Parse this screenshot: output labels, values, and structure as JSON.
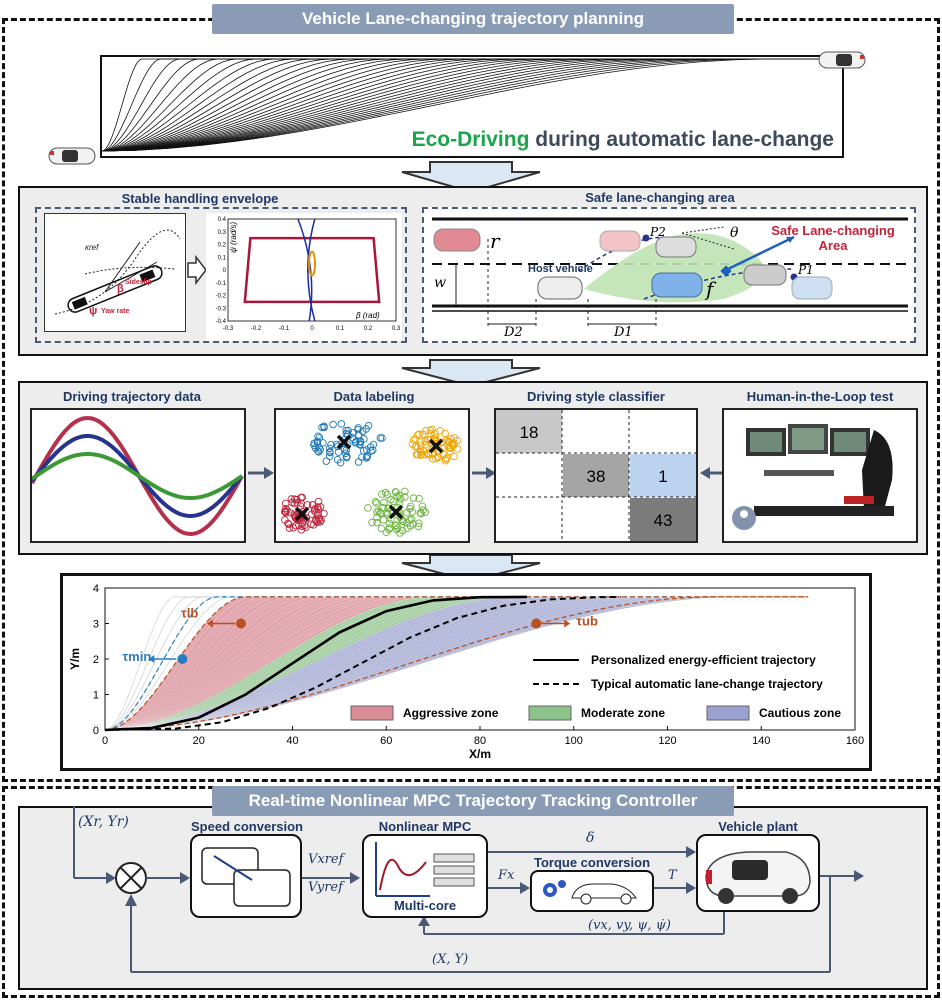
{
  "top": {
    "title": "Vehicle Lane-changing trajectory planning",
    "eco_word": "Eco-Driving",
    "eco_rest": "during automatic lane-change"
  },
  "envelope": {
    "title": "Stable handling envelope",
    "sideslip": "Sideslip",
    "yaw_rate": "Yaw rate",
    "beta_sym": "β",
    "psi_sym": "ψ",
    "kref": "κref",
    "ylabel": "ψ̇ (rad/s)",
    "xlabel": "β (rad)",
    "yticks": [
      "0.4",
      "0.3",
      "0.2",
      "0.1",
      "0",
      "-0.1",
      "-0.2",
      "-0.3",
      "-0.4"
    ],
    "xticks": [
      "-0.3",
      "-0.2",
      "-0.1",
      "0",
      "0.1",
      "0.2",
      "0.3"
    ]
  },
  "safe_area": {
    "title": "Safe lane-changing area",
    "host": "Host vehicle",
    "safe_label_1": "Safe Lane-changing",
    "safe_label_2": "Area",
    "r": "r",
    "f": "f",
    "w": "w",
    "p1": "P1",
    "p2": "P2",
    "theta": "θ",
    "d1": "D1",
    "d2": "D2"
  },
  "classification": {
    "traj_title": "Driving trajectory data",
    "label_title": "Data labeling",
    "classifier_title": "Driving style classifier",
    "hil_title": "Human-in-the-Loop test",
    "grid_values": [
      "18",
      "38",
      "1",
      "43"
    ],
    "colors": {
      "aggressive": "#b5304a",
      "moderate": "#3c9a35",
      "cautious": "#26348e",
      "blue": "#1f77b4",
      "orange": "#f0a500",
      "red": "#c0243a",
      "green": "#6cb33f"
    }
  },
  "chart_data": {
    "type": "line",
    "xlabel": "X/m",
    "ylabel": "Y/m",
    "xlim": [
      0,
      160
    ],
    "ylim": [
      0,
      4
    ],
    "xticks": [
      "0",
      "20",
      "40",
      "60",
      "80",
      "100",
      "120",
      "140",
      "160"
    ],
    "yticks": [
      "0",
      "1",
      "2",
      "3",
      "4"
    ],
    "lane_height": 3.75,
    "series": [
      {
        "name": "Personalized energy-efficient trajectory",
        "x": [
          0,
          10,
          20,
          30,
          40,
          50,
          60,
          70,
          80,
          90
        ],
        "y": [
          0,
          0.06,
          0.35,
          1.0,
          1.88,
          2.75,
          3.35,
          3.65,
          3.74,
          3.75
        ]
      },
      {
        "name": "Typical automatic lane-change trajectory",
        "x": [
          0,
          15,
          25,
          35,
          45,
          55,
          65,
          75,
          85,
          95,
          105,
          110
        ],
        "y": [
          0,
          0.04,
          0.22,
          0.62,
          1.2,
          1.9,
          2.6,
          3.15,
          3.5,
          3.68,
          3.74,
          3.75
        ]
      }
    ],
    "zones": [
      {
        "name": "Aggressive zone",
        "color": "#d98b96",
        "left_end": 30,
        "right_end": 70
      },
      {
        "name": "Moderate zone",
        "color": "#8cc38a",
        "left_end": 70,
        "right_end": 88
      },
      {
        "name": "Cautious zone",
        "color": "#9aa0cf",
        "left_end": 88,
        "right_end": 135
      }
    ],
    "markers": [
      {
        "label": "τmin",
        "x": 16.5,
        "y": 2.0,
        "color": "#2a7bbf"
      },
      {
        "label": "τlb",
        "x": 29,
        "y": 3.0,
        "color": "#b8501f"
      },
      {
        "label": "τub",
        "x": 92,
        "y": 3.0,
        "color": "#b8501f"
      }
    ]
  },
  "mpc": {
    "title": "Real-time Nonlinear MPC Trajectory Tracking Controller",
    "input": "(Xr, Yr)",
    "speed_conversion": "Speed conversion",
    "nonlinear_mpc": "Nonlinear MPC",
    "multi_core": "Multi-core",
    "torque_conversion": "Torque conversion",
    "vehicle_plant": "Vehicle plant",
    "vx_ref": "Vxref",
    "vy_ref": "Vyref",
    "delta": "δ",
    "fx": "Fx",
    "t": "T",
    "states": "(vx, vy, ψ, ψ̇)",
    "feedback": "(X, Y)"
  }
}
